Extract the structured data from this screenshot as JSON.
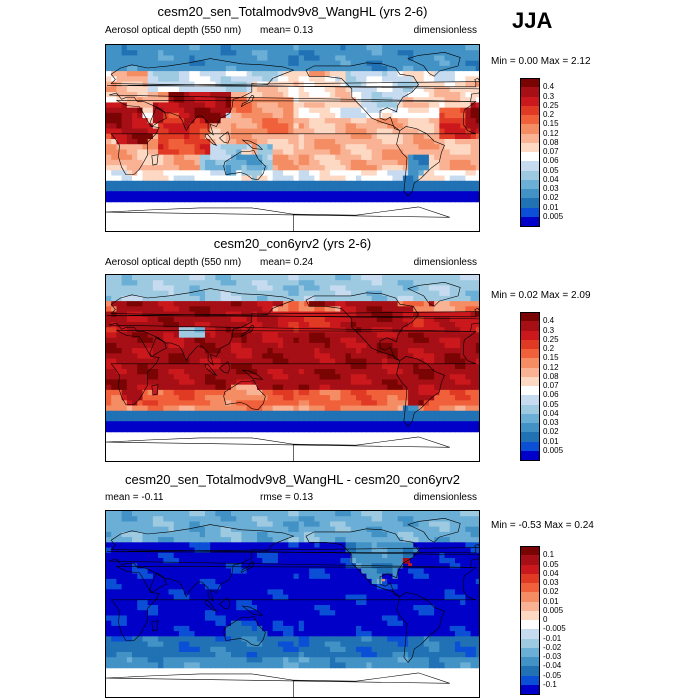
{
  "season": "JJA",
  "panels": [
    {
      "id": "sen",
      "title": "cesm20_sen_Totalmodv9v8_WangHL (yrs 2-6)",
      "left_label": "Aerosol optical depth (550 nm)",
      "mid_label": "mean=  0.13",
      "right_label": "dimensionless",
      "minmax": "Min =   0.00 Max =   2.12",
      "theme": "sen"
    },
    {
      "id": "con",
      "title": "cesm20_con6yrv2 (yrs 2-6)",
      "left_label": "Aerosol optical depth (550 nm)",
      "mid_label": "mean=  0.24",
      "right_label": "dimensionless",
      "minmax": "Min =  0.02 Max =   2.09",
      "theme": "con"
    },
    {
      "id": "diff",
      "title": "cesm20_sen_Totalmodv9v8_WangHL - cesm20_con6yrv2",
      "left_label": "mean =  -0.11",
      "mid_label": "rmse =   0.13",
      "right_label": "dimensionless",
      "minmax": "Min =  -0.53 Max =   0.24",
      "theme": "diff"
    }
  ],
  "chart_data": [
    {
      "type": "heatmap",
      "title": "cesm20_sen_Totalmodv9v8_WangHL (yrs 2-6)",
      "variable": "Aerosol optical depth (550 nm)",
      "units": "dimensionless",
      "mean": 0.13,
      "min": 0.0,
      "max": 2.12,
      "colorbar_levels": [
        "0.4",
        "0.3",
        "0.25",
        "0.2",
        "0.15",
        "0.12",
        "0.08",
        "0.07",
        "0.06",
        "0.05",
        "0.04",
        "0.03",
        "0.02",
        "0.01",
        "0.005"
      ],
      "colorbar_colors": [
        "#7a0403",
        "#a50f15",
        "#cb181d",
        "#e03a24",
        "#f0603a",
        "#f58d64",
        "#fab295",
        "#fdd9c4",
        "#ffffff",
        "#c6dbef",
        "#9ecae1",
        "#6baed6",
        "#4292c6",
        "#2171b5",
        "#0b4fd6",
        "#0000c8"
      ]
    },
    {
      "type": "heatmap",
      "title": "cesm20_con6yrv2 (yrs 2-6)",
      "variable": "Aerosol optical depth (550 nm)",
      "units": "dimensionless",
      "mean": 0.24,
      "min": 0.02,
      "max": 2.09,
      "colorbar_levels": [
        "0.4",
        "0.3",
        "0.25",
        "0.2",
        "0.15",
        "0.12",
        "0.08",
        "0.07",
        "0.06",
        "0.05",
        "0.04",
        "0.03",
        "0.02",
        "0.01",
        "0.005"
      ],
      "colorbar_colors": [
        "#7a0403",
        "#a50f15",
        "#cb181d",
        "#e03a24",
        "#f0603a",
        "#f58d64",
        "#fab295",
        "#fdd9c4",
        "#ffffff",
        "#c6dbef",
        "#9ecae1",
        "#6baed6",
        "#4292c6",
        "#2171b5",
        "#0b4fd6",
        "#0000c8"
      ]
    },
    {
      "type": "heatmap",
      "title": "cesm20_sen_Totalmodv9v8_WangHL - cesm20_con6yrv2",
      "units": "dimensionless",
      "mean": -0.11,
      "rmse": 0.13,
      "min": -0.53,
      "max": 0.24,
      "colorbar_levels": [
        "0.1",
        "0.05",
        "0.04",
        "0.03",
        "0.02",
        "0.01",
        "0.005",
        "0",
        "-0.005",
        "-0.01",
        "-0.02",
        "-0.03",
        "-0.04",
        "-0.05",
        "-0.1"
      ],
      "colorbar_colors": [
        "#7a0403",
        "#a50f15",
        "#cb181d",
        "#e03a24",
        "#f0603a",
        "#f58d64",
        "#fab295",
        "#fdd9c4",
        "#ffffff",
        "#c6dbef",
        "#9ecae1",
        "#6baed6",
        "#4292c6",
        "#2171b5",
        "#0b4fd6",
        "#0000c8"
      ]
    }
  ]
}
